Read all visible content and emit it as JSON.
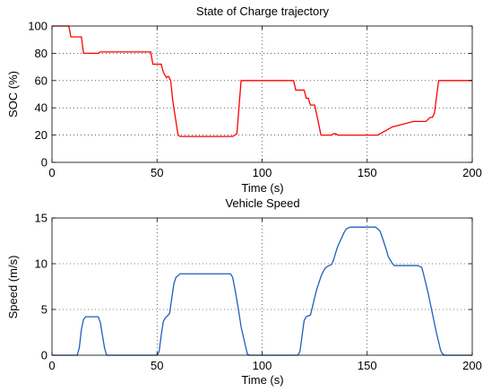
{
  "chart_data": [
    {
      "type": "line",
      "title": "State of Charge trajectory",
      "xlabel": "Time (s)",
      "ylabel": "SOC (%)",
      "xlim": [
        0,
        200
      ],
      "ylim": [
        0,
        100
      ],
      "xticks": [
        0,
        50,
        100,
        150,
        200
      ],
      "yticks": [
        0,
        20,
        40,
        60,
        80,
        100
      ],
      "grid": true,
      "series": [
        {
          "color": "#ff0000",
          "x": [
            0,
            8,
            9,
            14,
            15,
            22,
            23,
            47,
            48,
            52,
            53,
            54.5,
            55,
            55.5,
            56.5,
            57.5,
            60,
            61,
            86,
            88,
            90,
            115,
            116,
            120,
            121,
            122,
            123,
            125,
            126,
            128,
            133,
            134,
            135,
            136,
            137,
            138,
            155,
            162,
            172,
            176,
            178,
            180,
            181,
            182,
            184,
            200
          ],
          "y": [
            100,
            100,
            92,
            92,
            80,
            80,
            81,
            81,
            72,
            72,
            66,
            62,
            63,
            63,
            60,
            45,
            20,
            19,
            19,
            21,
            60,
            60,
            53,
            53,
            47,
            47,
            42,
            42,
            35,
            20,
            20,
            21,
            21,
            20,
            20,
            20,
            20,
            26,
            30,
            30,
            30,
            33,
            33,
            36,
            60,
            60
          ]
        }
      ]
    },
    {
      "type": "line",
      "title": "Vehicle Speed",
      "xlabel": "Time (s)",
      "ylabel": "Speed (m/s)",
      "xlim": [
        0,
        200
      ],
      "ylim": [
        0,
        15
      ],
      "xticks": [
        0,
        50,
        100,
        150,
        200
      ],
      "yticks": [
        0,
        5,
        10,
        15
      ],
      "grid": true,
      "series": [
        {
          "color": "#1f5fbf",
          "x": [
            0,
            12,
            13,
            14,
            15,
            16,
            22,
            23,
            24,
            25,
            26,
            50,
            51,
            52,
            53,
            54,
            55,
            56,
            57,
            58,
            59,
            61,
            62,
            85,
            86,
            87,
            88,
            89,
            90,
            93,
            94,
            117,
            118,
            119,
            120,
            121,
            122,
            123,
            124,
            125,
            126,
            127,
            128,
            129,
            130,
            131,
            132,
            133,
            134,
            135,
            136,
            138,
            139,
            140,
            141,
            142,
            154,
            156,
            157,
            159,
            160,
            162,
            163,
            165,
            174,
            176,
            177,
            179,
            180,
            182,
            183,
            185,
            186,
            187,
            188,
            200
          ],
          "y": [
            0,
            0,
            0.8,
            2.8,
            3.9,
            4.2,
            4.2,
            3.6,
            2.2,
            0.8,
            0,
            0,
            0.4,
            2.2,
            3.7,
            4.1,
            4.3,
            4.6,
            6.2,
            7.8,
            8.5,
            8.9,
            8.9,
            8.9,
            8.5,
            7.3,
            6,
            4.6,
            3.1,
            0.1,
            0,
            0,
            0.4,
            2.1,
            3.8,
            4.2,
            4.3,
            4.4,
            5.3,
            6.3,
            7.2,
            7.9,
            8.6,
            9.1,
            9.5,
            9.7,
            9.8,
            9.9,
            10.4,
            11.2,
            11.9,
            12.9,
            13.4,
            13.8,
            13.9,
            14,
            14,
            13.6,
            13,
            11.6,
            10.8,
            10,
            9.8,
            9.8,
            9.8,
            9.6,
            8.7,
            6.8,
            5.7,
            3.5,
            2.4,
            0.5,
            0.1,
            0,
            0,
            0
          ]
        }
      ]
    }
  ]
}
